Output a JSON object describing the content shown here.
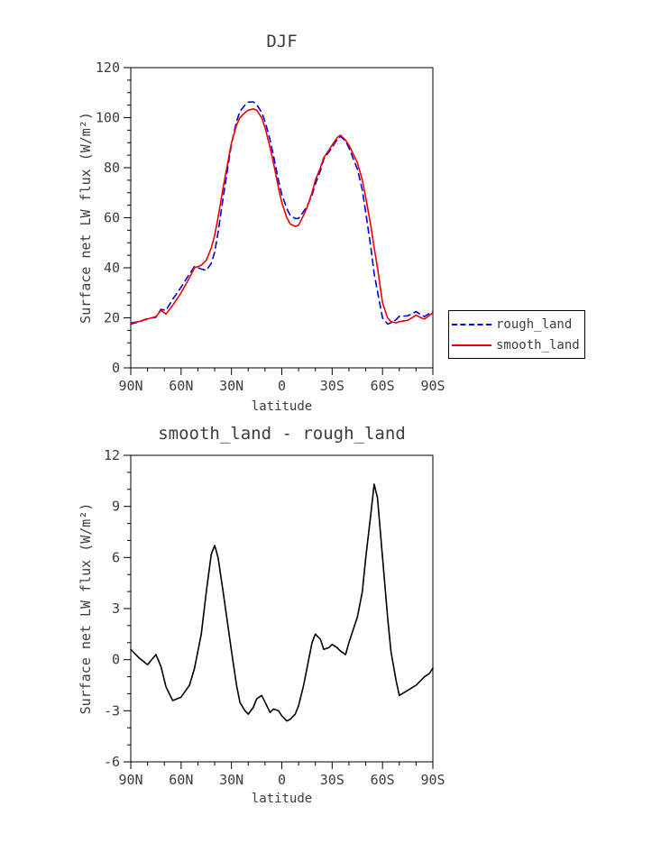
{
  "page": {
    "background": "#ffffff",
    "text_color": "#3c3c3c"
  },
  "chart_data": [
    {
      "id": "djf",
      "type": "line",
      "title": "DJF",
      "xlabel": "latitude",
      "ylabel": "Surface net LW flux (W/m²)",
      "xlim": [
        90,
        -90
      ],
      "ylim": [
        0,
        120
      ],
      "xticks": [
        90,
        60,
        30,
        0,
        -30,
        -60,
        -90
      ],
      "xticklabels": [
        "90N",
        "60N",
        "30N",
        "0",
        "30S",
        "60S",
        "90S"
      ],
      "xminor": 10,
      "yticks": [
        0,
        20,
        40,
        60,
        80,
        100,
        120
      ],
      "yticklabels": [
        "0",
        "20",
        "40",
        "60",
        "80",
        "100",
        "120"
      ],
      "yminor": 5,
      "grid": false,
      "legend_position": "outside-right-bottom",
      "x": [
        90,
        85,
        80,
        75,
        72,
        69,
        65,
        60,
        55,
        52,
        48,
        45,
        42,
        40,
        38,
        35,
        30,
        27,
        25,
        22,
        20,
        17,
        15,
        12,
        10,
        7,
        5,
        2,
        0,
        -3,
        -5,
        -8,
        -10,
        -13,
        -15,
        -18,
        -20,
        -23,
        -25,
        -28,
        -30,
        -33,
        -35,
        -38,
        -40,
        -45,
        -48,
        -50,
        -53,
        -55,
        -57,
        -60,
        -63,
        -65,
        -68,
        -70,
        -75,
        -80,
        -83,
        -85,
        -88,
        -90
      ],
      "series": [
        {
          "name": "rough_land",
          "color": "#0000dd",
          "dash": "7,5",
          "values": [
            17.5,
            18.4,
            19.7,
            20.2,
            23.4,
            23,
            27.4,
            32.2,
            37.5,
            40.5,
            39.5,
            39,
            41.8,
            46.3,
            54,
            68,
            89.5,
            98.5,
            102.5,
            105,
            106.2,
            106.3,
            105.3,
            102.1,
            98.5,
            91.1,
            84.9,
            75,
            69.3,
            63.6,
            61,
            59.7,
            59.7,
            62.5,
            64.5,
            69,
            73.5,
            78.8,
            83.4,
            86.3,
            88.1,
            91.3,
            92.5,
            90.7,
            88,
            79.5,
            71,
            62,
            48.5,
            37.7,
            30.5,
            20,
            17.5,
            18,
            19.2,
            20.6,
            20.8,
            22.5,
            21.2,
            20.5,
            21.8,
            22.5
          ]
        },
        {
          "name": "smooth_land",
          "color": "#ee0000",
          "dash": null,
          "values": [
            18,
            18.5,
            19.5,
            20.5,
            23,
            21.5,
            25,
            30,
            36,
            40,
            41,
            43,
            48,
            53,
            60,
            72,
            90,
            97,
            100,
            102,
            103,
            103.5,
            103,
            100,
            96,
            88,
            82,
            72,
            66,
            60,
            57.5,
            56.5,
            57,
            61,
            64,
            70,
            75,
            80,
            84,
            87,
            89,
            92,
            93,
            91,
            89,
            82,
            75,
            68,
            57,
            48,
            40,
            26,
            20,
            18.5,
            18,
            18.5,
            19,
            21,
            20,
            19.5,
            21,
            22
          ]
        }
      ]
    },
    {
      "id": "diff",
      "type": "line",
      "title": "smooth_land - rough_land",
      "xlabel": "latitude",
      "ylabel": "Surface net LW flux (W/m²)",
      "xlim": [
        90,
        -90
      ],
      "ylim": [
        -6,
        12
      ],
      "xticks": [
        90,
        60,
        30,
        0,
        -30,
        -60,
        -90
      ],
      "xticklabels": [
        "90N",
        "60N",
        "30N",
        "0",
        "30S",
        "60S",
        "90S"
      ],
      "xminor": 10,
      "yticks": [
        -6,
        -3,
        0,
        3,
        6,
        9,
        12
      ],
      "yticklabels": [
        "-6",
        "-3",
        "0",
        "3",
        "6",
        "9",
        "12"
      ],
      "yminor": 1,
      "grid": false,
      "x": [
        90,
        85,
        80,
        75,
        72,
        69,
        65,
        60,
        55,
        52,
        48,
        45,
        42,
        40,
        38,
        35,
        30,
        27,
        25,
        22,
        20,
        17,
        15,
        12,
        10,
        7,
        5,
        2,
        0,
        -3,
        -5,
        -8,
        -10,
        -13,
        -15,
        -18,
        -20,
        -23,
        -25,
        -28,
        -30,
        -33,
        -35,
        -38,
        -40,
        -45,
        -48,
        -50,
        -53,
        -55,
        -57,
        -60,
        -63,
        -65,
        -68,
        -70,
        -75,
        -80,
        -83,
        -85,
        -88,
        -90
      ],
      "series": [
        {
          "name": "smooth_land - rough_land",
          "color": "#000000",
          "dash": null,
          "values": [
            0.6,
            0.1,
            -0.3,
            0.3,
            -0.4,
            -1.6,
            -2.4,
            -2.2,
            -1.5,
            -0.5,
            1.5,
            4,
            6.2,
            6.7,
            6,
            4,
            0.5,
            -1.5,
            -2.5,
            -3,
            -3.2,
            -2.8,
            -2.3,
            -2.1,
            -2.5,
            -3.1,
            -2.9,
            -3,
            -3.3,
            -3.6,
            -3.5,
            -3.2,
            -2.7,
            -1.5,
            -0.5,
            1,
            1.5,
            1.2,
            0.6,
            0.7,
            0.9,
            0.7,
            0.5,
            0.3,
            1,
            2.5,
            4,
            6,
            8.5,
            10.3,
            9.5,
            6,
            2.5,
            0.5,
            -1.2,
            -2.1,
            -1.8,
            -1.5,
            -1.2,
            -1,
            -0.8,
            -0.5
          ]
        }
      ]
    }
  ]
}
